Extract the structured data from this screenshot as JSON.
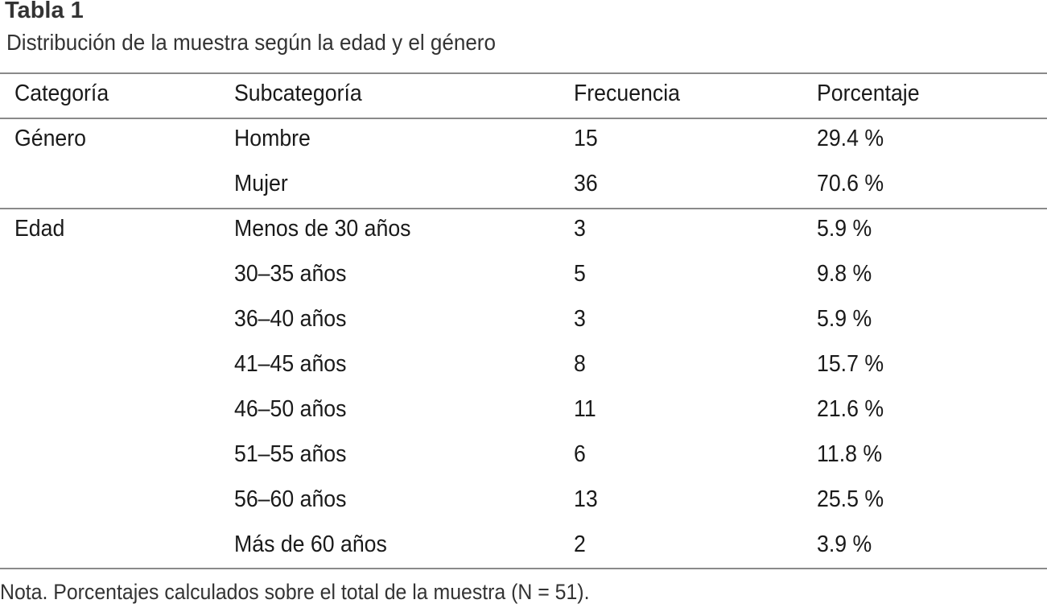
{
  "title": "Tabla 1",
  "subtitle": "Distribución de la muestra según la edad y el género",
  "table": {
    "headers": [
      "Categoría",
      "Subcategoría",
      "Frecuencia",
      "Porcentaje"
    ],
    "rows": [
      [
        "Género",
        "Hombre",
        "15",
        "29.4 %"
      ],
      [
        "",
        "Mujer",
        "36",
        "70.6 %"
      ],
      [
        "Edad",
        "Menos de 30 años",
        "3",
        "5.9 %"
      ],
      [
        "",
        "30–35 años",
        "5",
        "9.8 %"
      ],
      [
        "",
        "36–40 años",
        "3",
        "5.9 %"
      ],
      [
        "",
        "41–45 años",
        "8",
        "15.7 %"
      ],
      [
        "",
        "46–50 años",
        "11",
        "21.6 %"
      ],
      [
        "",
        "51–55 años",
        "6",
        "11.8 %"
      ],
      [
        "",
        "56–60 años",
        "13",
        "25.5 %"
      ],
      [
        "",
        "Más de 60 años",
        "2",
        "3.9 %"
      ]
    ]
  },
  "note": "Nota. Porcentajes calculados sobre el total de la muestra (N = 51)."
}
